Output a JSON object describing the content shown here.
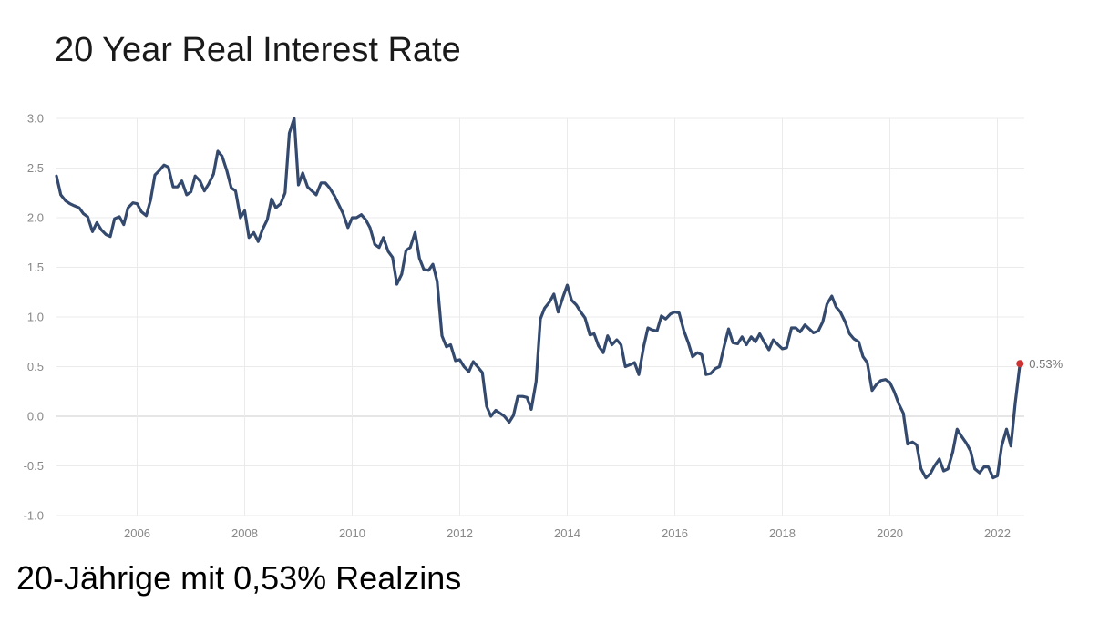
{
  "caption": "20-Jährige mit 0,53% Realzins",
  "chart_data": {
    "type": "line",
    "title": "20 Year Real Interest Rate",
    "xlabel": "",
    "ylabel": "",
    "xlim": [
      2004.5,
      2022.5
    ],
    "ylim": [
      -1.0,
      3.0
    ],
    "x_ticks": [
      "2006",
      "2008",
      "2010",
      "2012",
      "2014",
      "2016",
      "2018",
      "2020",
      "2022"
    ],
    "y_ticks": [
      "3.0",
      "2.5",
      "2.0",
      "1.5",
      "1.0",
      "0.5",
      "0.0",
      "-0.5",
      "-1.0"
    ],
    "grid": true,
    "line_color": "#34496e",
    "end_marker_color": "#cc3333",
    "end_label": "0.53%",
    "series": [
      {
        "points": [
          [
            2004.5,
            2.42
          ],
          [
            2004.58,
            2.23
          ],
          [
            2004.67,
            2.17
          ],
          [
            2004.75,
            2.14
          ],
          [
            2004.83,
            2.12
          ],
          [
            2004.92,
            2.1
          ],
          [
            2005.0,
            2.04
          ],
          [
            2005.08,
            2.01
          ],
          [
            2005.17,
            1.86
          ],
          [
            2005.25,
            1.95
          ],
          [
            2005.33,
            1.88
          ],
          [
            2005.42,
            1.83
          ],
          [
            2005.5,
            1.81
          ],
          [
            2005.58,
            1.99
          ],
          [
            2005.67,
            2.01
          ],
          [
            2005.75,
            1.93
          ],
          [
            2005.83,
            2.1
          ],
          [
            2005.92,
            2.15
          ],
          [
            2006.0,
            2.14
          ],
          [
            2006.08,
            2.06
          ],
          [
            2006.17,
            2.02
          ],
          [
            2006.25,
            2.18
          ],
          [
            2006.33,
            2.43
          ],
          [
            2006.42,
            2.48
          ],
          [
            2006.5,
            2.53
          ],
          [
            2006.58,
            2.51
          ],
          [
            2006.67,
            2.31
          ],
          [
            2006.75,
            2.31
          ],
          [
            2006.83,
            2.37
          ],
          [
            2006.92,
            2.23
          ],
          [
            2007.0,
            2.26
          ],
          [
            2007.08,
            2.42
          ],
          [
            2007.17,
            2.37
          ],
          [
            2007.25,
            2.27
          ],
          [
            2007.33,
            2.34
          ],
          [
            2007.42,
            2.44
          ],
          [
            2007.5,
            2.67
          ],
          [
            2007.58,
            2.62
          ],
          [
            2007.67,
            2.47
          ],
          [
            2007.75,
            2.3
          ],
          [
            2007.83,
            2.27
          ],
          [
            2007.92,
            2.0
          ],
          [
            2008.0,
            2.07
          ],
          [
            2008.08,
            1.8
          ],
          [
            2008.17,
            1.85
          ],
          [
            2008.25,
            1.76
          ],
          [
            2008.33,
            1.88
          ],
          [
            2008.42,
            1.98
          ],
          [
            2008.5,
            2.19
          ],
          [
            2008.58,
            2.1
          ],
          [
            2008.67,
            2.14
          ],
          [
            2008.75,
            2.25
          ],
          [
            2008.83,
            2.85
          ],
          [
            2008.92,
            3.0
          ],
          [
            2009.0,
            2.33
          ],
          [
            2009.08,
            2.45
          ],
          [
            2009.17,
            2.31
          ],
          [
            2009.25,
            2.27
          ],
          [
            2009.33,
            2.23
          ],
          [
            2009.42,
            2.35
          ],
          [
            2009.5,
            2.35
          ],
          [
            2009.58,
            2.3
          ],
          [
            2009.67,
            2.22
          ],
          [
            2009.75,
            2.13
          ],
          [
            2009.83,
            2.04
          ],
          [
            2009.92,
            1.9
          ],
          [
            2010.0,
            2.0
          ],
          [
            2010.08,
            2.0
          ],
          [
            2010.17,
            2.03
          ],
          [
            2010.25,
            1.98
          ],
          [
            2010.33,
            1.9
          ],
          [
            2010.42,
            1.73
          ],
          [
            2010.5,
            1.7
          ],
          [
            2010.58,
            1.8
          ],
          [
            2010.67,
            1.66
          ],
          [
            2010.75,
            1.6
          ],
          [
            2010.83,
            1.33
          ],
          [
            2010.92,
            1.43
          ],
          [
            2011.0,
            1.67
          ],
          [
            2011.08,
            1.7
          ],
          [
            2011.17,
            1.85
          ],
          [
            2011.25,
            1.59
          ],
          [
            2011.33,
            1.48
          ],
          [
            2011.42,
            1.47
          ],
          [
            2011.5,
            1.53
          ],
          [
            2011.58,
            1.36
          ],
          [
            2011.67,
            0.81
          ],
          [
            2011.75,
            0.7
          ],
          [
            2011.83,
            0.72
          ],
          [
            2011.92,
            0.56
          ],
          [
            2012.0,
            0.57
          ],
          [
            2012.08,
            0.5
          ],
          [
            2012.17,
            0.45
          ],
          [
            2012.25,
            0.55
          ],
          [
            2012.33,
            0.5
          ],
          [
            2012.42,
            0.44
          ],
          [
            2012.5,
            0.1
          ],
          [
            2012.58,
            0.0
          ],
          [
            2012.67,
            0.06
          ],
          [
            2012.75,
            0.03
          ],
          [
            2012.83,
            0.0
          ],
          [
            2012.92,
            -0.06
          ],
          [
            2013.0,
            0.01
          ],
          [
            2013.08,
            0.2
          ],
          [
            2013.17,
            0.2
          ],
          [
            2013.25,
            0.19
          ],
          [
            2013.33,
            0.07
          ],
          [
            2013.42,
            0.35
          ],
          [
            2013.5,
            0.98
          ],
          [
            2013.58,
            1.09
          ],
          [
            2013.67,
            1.15
          ],
          [
            2013.75,
            1.23
          ],
          [
            2013.83,
            1.05
          ],
          [
            2013.92,
            1.2
          ],
          [
            2014.0,
            1.32
          ],
          [
            2014.08,
            1.17
          ],
          [
            2014.17,
            1.12
          ],
          [
            2014.25,
            1.05
          ],
          [
            2014.33,
            0.99
          ],
          [
            2014.42,
            0.82
          ],
          [
            2014.5,
            0.83
          ],
          [
            2014.58,
            0.71
          ],
          [
            2014.67,
            0.64
          ],
          [
            2014.75,
            0.81
          ],
          [
            2014.83,
            0.72
          ],
          [
            2014.92,
            0.77
          ],
          [
            2015.0,
            0.72
          ],
          [
            2015.08,
            0.5
          ],
          [
            2015.17,
            0.52
          ],
          [
            2015.25,
            0.54
          ],
          [
            2015.33,
            0.42
          ],
          [
            2015.42,
            0.7
          ],
          [
            2015.5,
            0.89
          ],
          [
            2015.58,
            0.87
          ],
          [
            2015.67,
            0.86
          ],
          [
            2015.75,
            1.01
          ],
          [
            2015.83,
            0.98
          ],
          [
            2015.92,
            1.03
          ],
          [
            2016.0,
            1.05
          ],
          [
            2016.08,
            1.04
          ],
          [
            2016.17,
            0.86
          ],
          [
            2016.25,
            0.74
          ],
          [
            2016.33,
            0.6
          ],
          [
            2016.42,
            0.64
          ],
          [
            2016.5,
            0.62
          ],
          [
            2016.58,
            0.42
          ],
          [
            2016.67,
            0.43
          ],
          [
            2016.75,
            0.48
          ],
          [
            2016.83,
            0.5
          ],
          [
            2016.92,
            0.71
          ],
          [
            2017.0,
            0.88
          ],
          [
            2017.08,
            0.74
          ],
          [
            2017.17,
            0.73
          ],
          [
            2017.25,
            0.8
          ],
          [
            2017.33,
            0.72
          ],
          [
            2017.42,
            0.8
          ],
          [
            2017.5,
            0.75
          ],
          [
            2017.58,
            0.83
          ],
          [
            2017.67,
            0.74
          ],
          [
            2017.75,
            0.67
          ],
          [
            2017.83,
            0.77
          ],
          [
            2017.92,
            0.72
          ],
          [
            2018.0,
            0.68
          ],
          [
            2018.08,
            0.69
          ],
          [
            2018.17,
            0.89
          ],
          [
            2018.25,
            0.89
          ],
          [
            2018.33,
            0.85
          ],
          [
            2018.42,
            0.92
          ],
          [
            2018.5,
            0.88
          ],
          [
            2018.58,
            0.84
          ],
          [
            2018.67,
            0.86
          ],
          [
            2018.75,
            0.95
          ],
          [
            2018.83,
            1.13
          ],
          [
            2018.92,
            1.21
          ],
          [
            2019.0,
            1.1
          ],
          [
            2019.08,
            1.05
          ],
          [
            2019.17,
            0.95
          ],
          [
            2019.25,
            0.83
          ],
          [
            2019.33,
            0.78
          ],
          [
            2019.42,
            0.75
          ],
          [
            2019.5,
            0.6
          ],
          [
            2019.58,
            0.54
          ],
          [
            2019.67,
            0.26
          ],
          [
            2019.75,
            0.32
          ],
          [
            2019.83,
            0.36
          ],
          [
            2019.92,
            0.37
          ],
          [
            2020.0,
            0.34
          ],
          [
            2020.08,
            0.25
          ],
          [
            2020.17,
            0.12
          ],
          [
            2020.25,
            0.03
          ],
          [
            2020.33,
            -0.28
          ],
          [
            2020.42,
            -0.26
          ],
          [
            2020.5,
            -0.29
          ],
          [
            2020.58,
            -0.53
          ],
          [
            2020.67,
            -0.62
          ],
          [
            2020.75,
            -0.58
          ],
          [
            2020.83,
            -0.5
          ],
          [
            2020.92,
            -0.43
          ],
          [
            2021.0,
            -0.55
          ],
          [
            2021.08,
            -0.53
          ],
          [
            2021.17,
            -0.36
          ],
          [
            2021.25,
            -0.13
          ],
          [
            2021.33,
            -0.2
          ],
          [
            2021.42,
            -0.27
          ],
          [
            2021.5,
            -0.35
          ],
          [
            2021.58,
            -0.53
          ],
          [
            2021.67,
            -0.57
          ],
          [
            2021.75,
            -0.51
          ],
          [
            2021.83,
            -0.51
          ],
          [
            2021.92,
            -0.62
          ],
          [
            2022.0,
            -0.6
          ],
          [
            2022.08,
            -0.3
          ],
          [
            2022.17,
            -0.13
          ],
          [
            2022.25,
            -0.3
          ],
          [
            2022.33,
            0.13
          ],
          [
            2022.42,
            0.53
          ]
        ]
      }
    ]
  }
}
